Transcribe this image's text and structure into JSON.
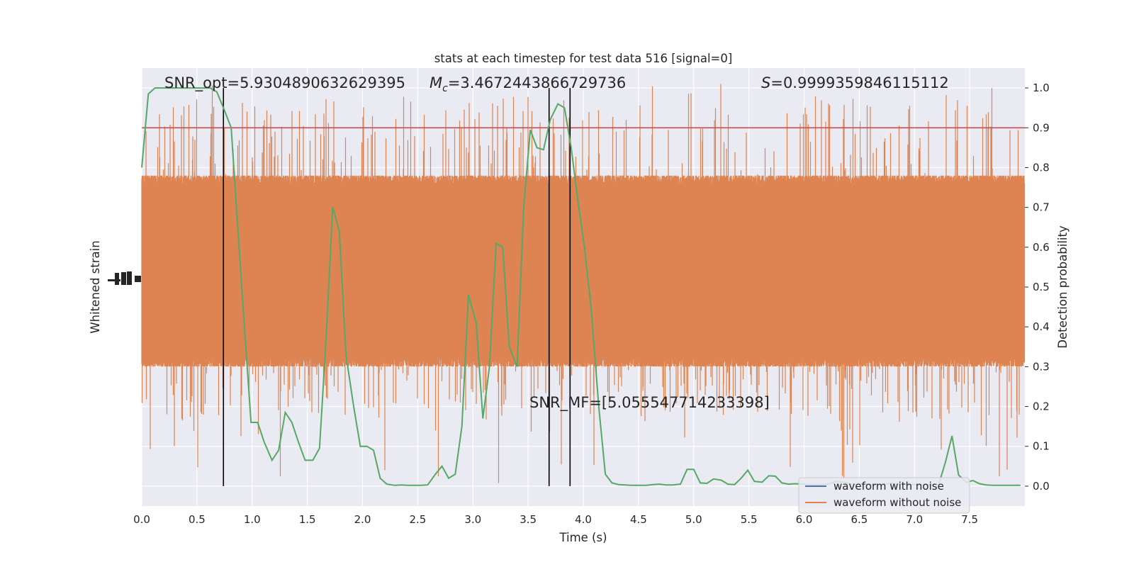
{
  "chart_data": {
    "type": "line",
    "title": "stats at each timestep for test data 516 [signal=0]",
    "xlabel": "Time (s)",
    "ylabel_left": "Whitened strain",
    "ylabel_right": "Detection probability",
    "xlim": [
      0,
      8.0
    ],
    "ylim_right": [
      -0.05,
      1.05
    ],
    "grid": true,
    "legend_placement": "lower-right",
    "x_ticks": [
      "0.0",
      "0.5",
      "1.0",
      "1.5",
      "2.0",
      "2.5",
      "3.0",
      "3.5",
      "4.0",
      "4.5",
      "5.0",
      "5.5",
      "6.0",
      "6.5",
      "7.0",
      "7.5"
    ],
    "y_right_ticks": [
      "0.0",
      "0.1",
      "0.2",
      "0.3",
      "0.4",
      "0.5",
      "0.6",
      "0.7",
      "0.8",
      "0.9",
      "1.0"
    ],
    "annotations": {
      "snr_opt": "SNR_opt=5.9304890632629395",
      "mc_symbol": "M",
      "mc_subscript": "c",
      "mc_value": "=3.4672443866729736",
      "s_symbol": "S",
      "s_value": "=0.9999359846115112",
      "snr_mf": "SNR_MF=[5.055547714233398]"
    },
    "threshold": {
      "y": 0.9,
      "color": "#c44e52"
    },
    "vertical_lines": [
      0.74,
      3.69,
      3.88
    ],
    "series": [
      {
        "name": "waveform with noise",
        "color": "#4c72b0",
        "axis": "left",
        "values": []
      },
      {
        "name": "waveform without noise",
        "color": "#dd8452",
        "axis": "left",
        "band": {
          "typical_low": 0.3,
          "typical_high": 0.78,
          "extreme_low": 0.0,
          "extreme_high": 1.01,
          "center": 0.5
        }
      },
      {
        "name": "detection probability",
        "color": "#55a868",
        "axis": "right",
        "x": [
          0.0,
          0.06,
          0.12,
          0.19,
          0.25,
          0.31,
          0.37,
          0.44,
          0.5,
          0.56,
          0.62,
          0.68,
          0.74,
          0.81,
          0.87,
          0.93,
          0.99,
          1.05,
          1.11,
          1.18,
          1.24,
          1.3,
          1.36,
          1.42,
          1.48,
          1.55,
          1.61,
          1.67,
          1.73,
          1.79,
          1.85,
          1.92,
          1.98,
          2.04,
          2.1,
          2.16,
          2.22,
          2.29,
          2.35,
          2.41,
          2.47,
          2.53,
          2.59,
          2.66,
          2.72,
          2.78,
          2.84,
          2.9,
          2.96,
          3.03,
          3.09,
          3.15,
          3.21,
          3.27,
          3.33,
          3.4,
          3.46,
          3.52,
          3.58,
          3.64,
          3.7,
          3.77,
          3.83,
          3.89,
          3.95,
          4.01,
          4.07,
          4.14,
          4.2,
          4.26,
          4.32,
          4.38,
          4.44,
          4.51,
          4.57,
          4.63,
          4.69,
          4.75,
          4.81,
          4.88,
          4.94,
          5.0,
          5.06,
          5.12,
          5.18,
          5.25,
          5.31,
          5.37,
          5.43,
          5.49,
          5.55,
          5.62,
          5.68,
          5.74,
          5.8,
          5.86,
          5.92,
          5.99,
          6.05,
          6.11,
          6.17,
          6.23,
          6.29,
          6.36,
          6.42,
          6.48,
          6.54,
          6.6,
          6.66,
          6.73,
          6.79,
          6.85,
          6.91,
          6.97,
          7.03,
          7.1,
          7.16,
          7.22,
          7.28,
          7.34,
          7.4,
          7.47,
          7.53,
          7.59,
          7.65,
          7.71,
          7.77,
          7.84,
          7.9,
          7.96
        ],
        "values": [
          0.8,
          0.985,
          1.0,
          1.0,
          1.0,
          1.0,
          1.0,
          1.0,
          1.0,
          1.0,
          1.0,
          0.99,
          0.95,
          0.9,
          0.65,
          0.4,
          0.16,
          0.16,
          0.11,
          0.065,
          0.09,
          0.185,
          0.16,
          0.11,
          0.065,
          0.065,
          0.095,
          0.37,
          0.7,
          0.64,
          0.33,
          0.2,
          0.1,
          0.1,
          0.09,
          0.02,
          0.005,
          0.002,
          0.003,
          0.002,
          0.002,
          0.002,
          0.003,
          0.03,
          0.05,
          0.02,
          0.03,
          0.15,
          0.48,
          0.41,
          0.17,
          0.3,
          0.61,
          0.6,
          0.35,
          0.3,
          0.7,
          0.895,
          0.85,
          0.845,
          0.92,
          0.96,
          0.95,
          0.85,
          0.72,
          0.6,
          0.45,
          0.2,
          0.03,
          0.008,
          0.004,
          0.003,
          0.002,
          0.002,
          0.002,
          0.004,
          0.005,
          0.003,
          0.003,
          0.005,
          0.042,
          0.042,
          0.008,
          0.007,
          0.018,
          0.015,
          0.005,
          0.004,
          0.02,
          0.04,
          0.012,
          0.01,
          0.026,
          0.025,
          0.008,
          0.005,
          0.006,
          0.005,
          0.004,
          0.004,
          0.004,
          0.006,
          0.012,
          0.01,
          0.005,
          0.005,
          0.006,
          0.004,
          0.004,
          0.005,
          0.007,
          0.005,
          0.005,
          0.004,
          0.004,
          0.004,
          0.004,
          0.004,
          0.06,
          0.126,
          0.028,
          0.01,
          0.014,
          0.006,
          0.003,
          0.002,
          0.002,
          0.002,
          0.002,
          0.002
        ]
      }
    ]
  }
}
